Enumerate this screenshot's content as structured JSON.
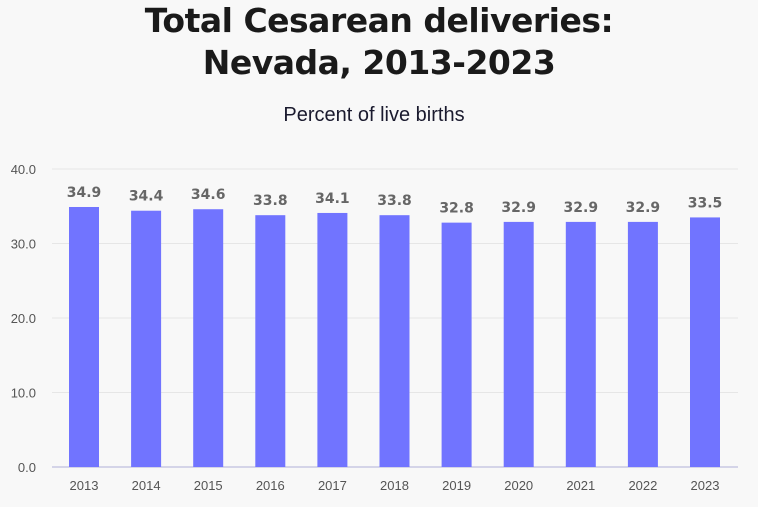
{
  "chart_data": {
    "type": "bar",
    "title_line1": "Total Cesarean deliveries:",
    "title_line2": "Nevada, 2013-2023",
    "subtitle": "Percent of live births",
    "categories": [
      "2013",
      "2014",
      "2015",
      "2016",
      "2017",
      "2018",
      "2019",
      "2020",
      "2021",
      "2022",
      "2023"
    ],
    "values": [
      34.9,
      34.4,
      34.6,
      33.8,
      34.1,
      33.8,
      32.8,
      32.9,
      32.9,
      32.9,
      33.5
    ],
    "ylim": [
      0,
      40
    ],
    "yticks": [
      "0.0",
      "10.0",
      "20.0",
      "30.0",
      "40.0"
    ],
    "grid": true,
    "bar_color": "#7174ff",
    "label_color": "#666666"
  }
}
